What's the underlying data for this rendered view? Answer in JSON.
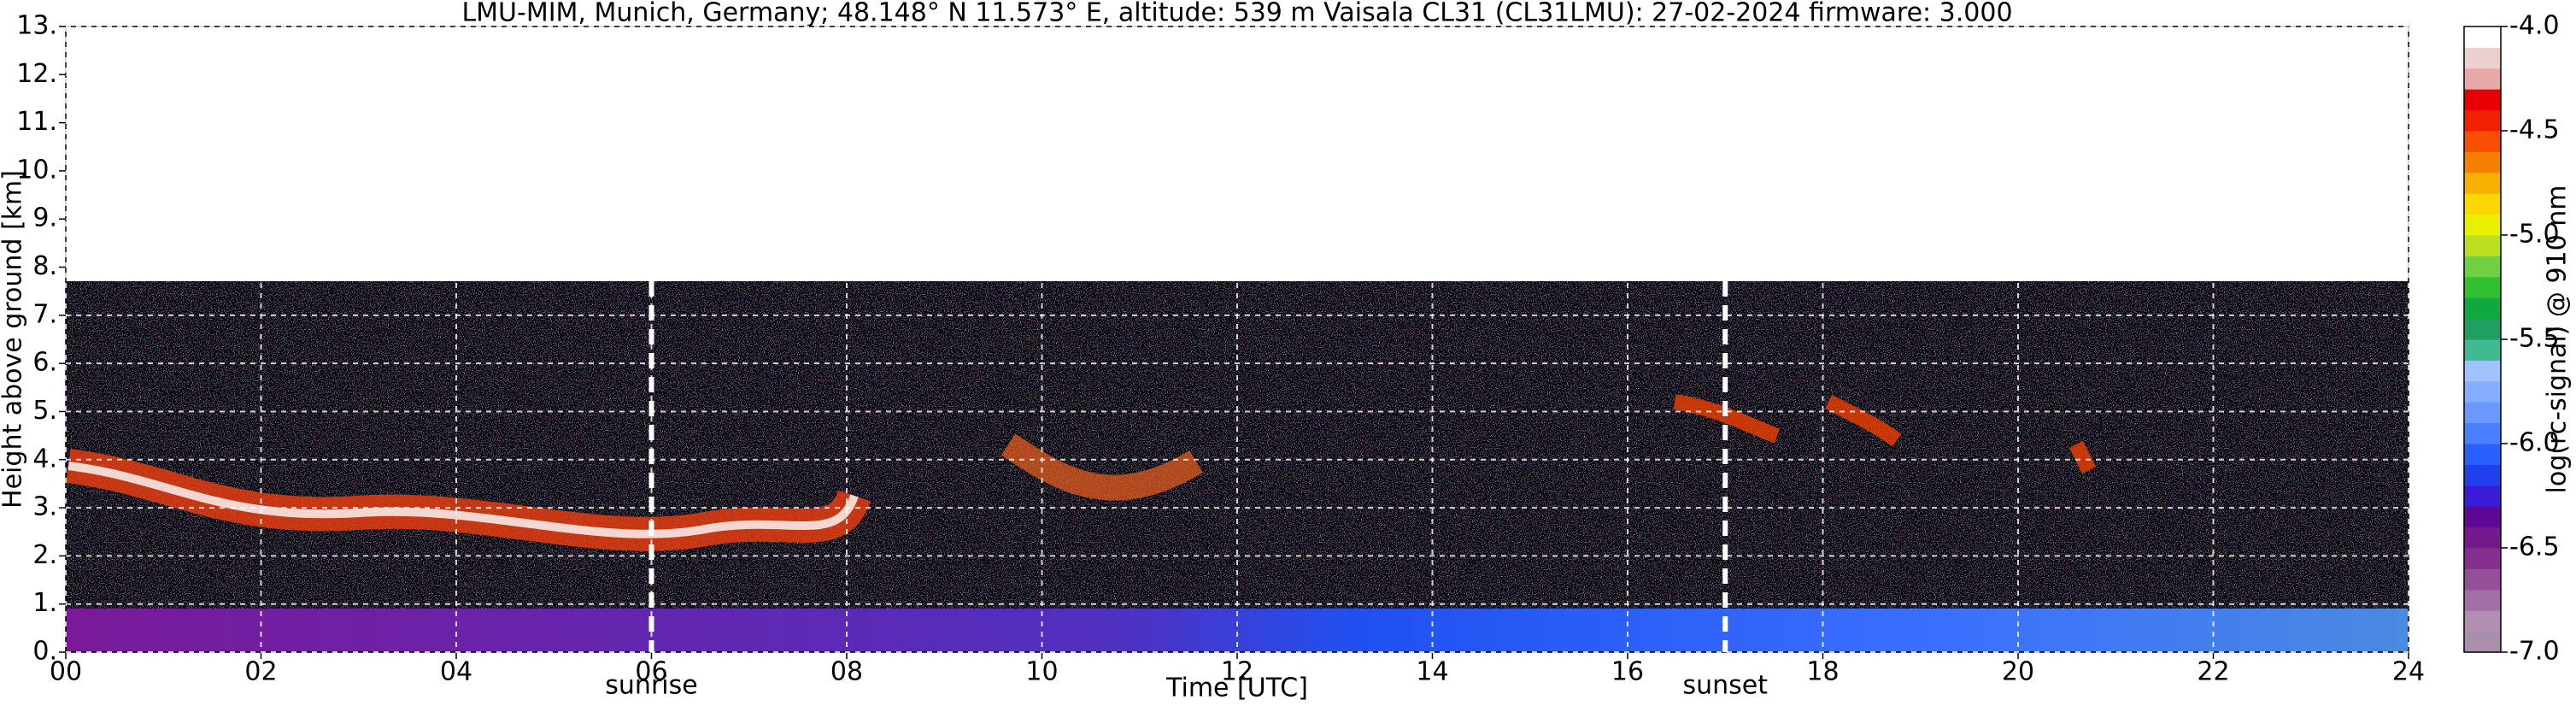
{
  "chart_data": {
    "type": "heatmap",
    "title": "LMU-MIM, Munich, Germany; 48.148° N 11.573° E, altitude: 539 m    Vaisala CL31 (CL31LMU): 27-02-2024    firmware: 3.000",
    "x_label": "Time [UTC]",
    "y_label": "Height above ground [km]",
    "xlim": [
      0,
      24
    ],
    "xticks": [
      {
        "value": 0,
        "label": "00"
      },
      {
        "value": 2,
        "label": "02"
      },
      {
        "value": 4,
        "label": "04"
      },
      {
        "value": 6,
        "label": "06"
      },
      {
        "value": 8,
        "label": "08"
      },
      10,
      12,
      14,
      16,
      18,
      20,
      22,
      24
    ],
    "ylim": [
      0,
      13
    ],
    "yticks": [
      {
        "value": 0,
        "label": "0."
      },
      {
        "value": 1,
        "label": "1."
      },
      {
        "value": 2,
        "label": "2."
      },
      {
        "value": 3,
        "label": "3."
      },
      {
        "value": 4,
        "label": "4."
      },
      {
        "value": 5,
        "label": "5."
      },
      {
        "value": 6,
        "label": "6."
      },
      {
        "value": 7,
        "label": "7."
      },
      {
        "value": 8,
        "label": "8."
      },
      {
        "value": 9,
        "label": "9."
      },
      {
        "value": 10,
        "label": "10."
      },
      {
        "value": 11,
        "label": "11."
      },
      {
        "value": 12,
        "label": "12."
      },
      {
        "value": 13,
        "label": "13."
      }
    ],
    "grid": true,
    "annotations": [
      {
        "text": "sunrise",
        "x": 6
      },
      {
        "text": "sunset",
        "x": 17
      }
    ],
    "colorbar": {
      "label": "log(rc-signal) @ 910 nm",
      "lim": [
        -7,
        -4
      ],
      "ticks": [
        {
          "value": -7,
          "label": "-7.0"
        },
        {
          "value": -6.5,
          "label": "-6.5"
        },
        {
          "value": -6,
          "label": "-6.0"
        },
        {
          "value": -5.5,
          "label": "-5.5"
        },
        {
          "value": -5,
          "label": "-5.0"
        },
        {
          "value": -4.5,
          "label": "-4.5"
        },
        {
          "value": -4,
          "label": "-4.0"
        }
      ],
      "colors": [
        "#a98fab",
        "#b08fb0",
        "#a070a5",
        "#935099",
        "#85308f",
        "#741a8c",
        "#5c0a96",
        "#3a1cd8",
        "#2040ee",
        "#2860ff",
        "#4a80ff",
        "#6a98ff",
        "#86aeff",
        "#a0c2ff",
        "#40b890",
        "#20a060",
        "#10a840",
        "#30c030",
        "#70d040",
        "#b8e020",
        "#e8f000",
        "#f8d800",
        "#f8b000",
        "#f88000",
        "#f85000",
        "#f02000",
        "#e80000",
        "#e8a8a8",
        "#ecd0d0",
        "#ffffff"
      ]
    }
  }
}
